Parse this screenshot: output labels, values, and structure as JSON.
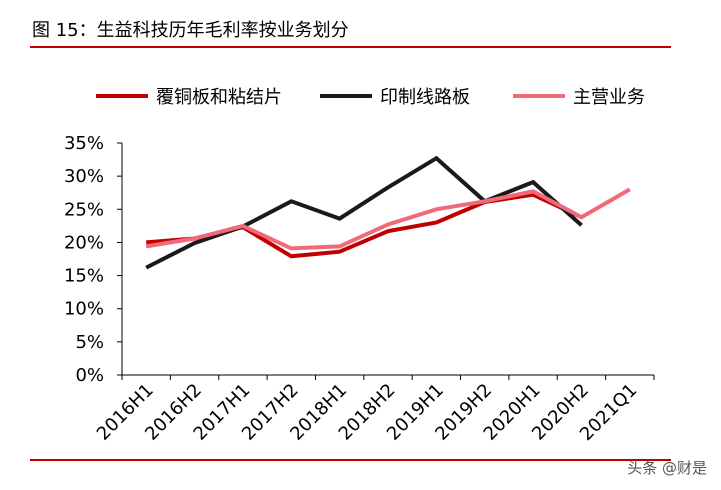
{
  "figure_title": "图 15：生益科技历年毛利率按业务划分",
  "watermark": "头条 @财是",
  "colors": {
    "rule": "#c00000"
  },
  "chart_data": {
    "type": "line",
    "title": "",
    "xlabel": "",
    "ylabel": "",
    "categories": [
      "2016H1",
      "2016H2",
      "2017H1",
      "2017H2",
      "2018H1",
      "2018H2",
      "2019H1",
      "2019H2",
      "2020H1",
      "2020H2",
      "2021Q1"
    ],
    "ylim": [
      0,
      35
    ],
    "y_ticks": [
      "0%",
      "5%",
      "10%",
      "15%",
      "20%",
      "25%",
      "30%",
      "35%"
    ],
    "y_unit": "%",
    "grid": false,
    "legend_position": "top",
    "series": [
      {
        "name": "覆铜板和粘结片",
        "color": "#c00000",
        "values": [
          20.0,
          20.6,
          22.3,
          17.9,
          18.6,
          21.7,
          23.0,
          26.1,
          27.2,
          23.8,
          null
        ]
      },
      {
        "name": "印制线路板",
        "color": "#1a1a1a",
        "values": [
          16.2,
          19.9,
          22.4,
          26.2,
          23.6,
          28.3,
          32.7,
          26.2,
          29.1,
          22.6,
          null
        ]
      },
      {
        "name": "主营业务",
        "color": "#f06a7a",
        "values": [
          19.4,
          20.6,
          22.5,
          19.1,
          19.4,
          22.7,
          25.0,
          26.2,
          27.7,
          23.8,
          28.0
        ]
      }
    ]
  }
}
